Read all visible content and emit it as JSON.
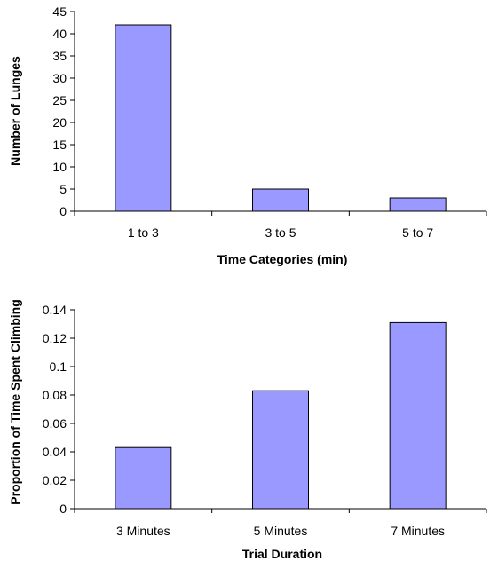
{
  "chart_data": [
    {
      "type": "bar",
      "title": "",
      "xlabel": "Time Categories (min)",
      "ylabel": "Number of Lunges",
      "categories": [
        "1 to 3",
        "3 to 5",
        "5 to 7"
      ],
      "values": [
        42,
        5,
        3
      ],
      "ylim": [
        0,
        45
      ],
      "yticks": [
        "0",
        "5",
        "10",
        "15",
        "20",
        "25",
        "30",
        "35",
        "40",
        "45"
      ],
      "ytick_values": [
        0,
        5,
        10,
        15,
        20,
        25,
        30,
        35,
        40,
        45
      ],
      "grid": false,
      "legend": "none",
      "bar_color": "#9999ff",
      "bar_edge_color": "#000000"
    },
    {
      "type": "bar",
      "title": "",
      "xlabel": "Trial Duration",
      "ylabel": "Proportion of Time Spent Climbing",
      "categories": [
        "3 Minutes",
        "5 Minutes",
        "7 Minutes"
      ],
      "values": [
        0.043,
        0.083,
        0.131
      ],
      "ylim": [
        0,
        0.14
      ],
      "yticks": [
        "0",
        "0.02",
        "0.04",
        "0.06",
        "0.08",
        "0.1",
        "0.12",
        "0.14"
      ],
      "ytick_values": [
        0,
        0.02,
        0.04,
        0.06,
        0.08,
        0.1,
        0.12,
        0.14
      ],
      "grid": false,
      "legend": "none",
      "bar_color": "#9999ff",
      "bar_edge_color": "#000000"
    }
  ]
}
